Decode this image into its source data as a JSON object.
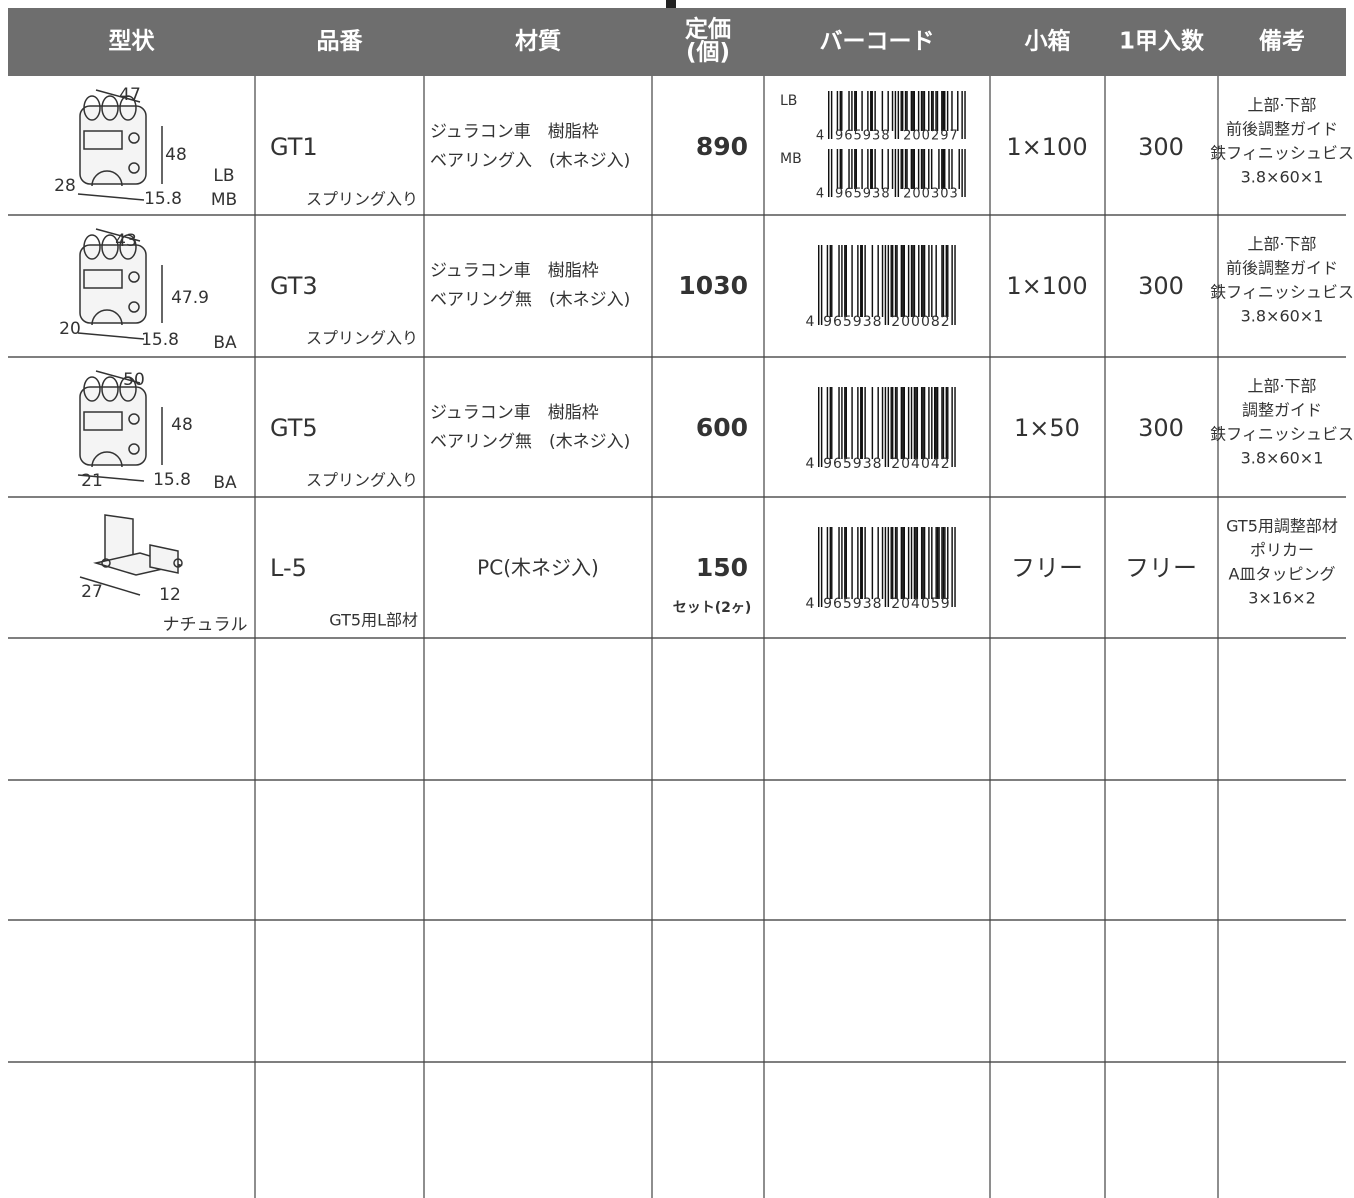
{
  "header": {
    "columns": [
      [
        "型状"
      ],
      [
        "品番"
      ],
      [
        "材質"
      ],
      [
        "定価",
        "(個)"
      ],
      [
        "バーコード"
      ],
      [
        "小箱"
      ],
      [
        "1甲入数"
      ],
      [
        "備考"
      ]
    ]
  },
  "rows": [
    {
      "shape": {
        "dims": [
          "47",
          "48",
          "28",
          "15.8",
          "LB",
          "MB"
        ]
      },
      "code": "GT1",
      "code_note": "スプリング入り",
      "material": [
        "ジュラコン車　樹脂枠",
        "ベアリング入　(木ネジ入)"
      ],
      "price": 890,
      "price_color": "#e60012",
      "barcode": [
        {
          "label": "LB",
          "lead": "4",
          "left": "965938",
          "right": "200297"
        },
        {
          "label": "MB",
          "lead": "4",
          "left": "965938",
          "right": "200303"
        }
      ],
      "box": "1×100",
      "qty": 300,
      "notes": [
        "上部·下部",
        "前後調整ガイド",
        "鉄フィニッシュビス",
        "3.8×60×1"
      ]
    },
    {
      "shape": {
        "dims": [
          "43",
          "47.9",
          "20",
          "15.8",
          "BA"
        ]
      },
      "code": "GT3",
      "code_note": "スプリング入り",
      "material": [
        "ジュラコン車　樹脂枠",
        "ベアリング無　(木ネジ入)"
      ],
      "price": 1030,
      "price_color": "#e60012",
      "barcode": [
        {
          "lead": "4",
          "left": "965938",
          "right": "200082"
        }
      ],
      "box": "1×100",
      "qty": 300,
      "notes": [
        "上部·下部",
        "前後調整ガイド",
        "鉄フィニッシュビス",
        "3.8×60×1"
      ]
    },
    {
      "shape": {
        "dims": [
          "50",
          "48",
          "21",
          "15.8",
          "BA"
        ]
      },
      "code": "GT5",
      "code_note": "スプリング入り",
      "material": [
        "ジュラコン車　樹脂枠",
        "ベアリング無　(木ネジ入)"
      ],
      "price": 600,
      "price_color": "#222222",
      "barcode": [
        {
          "lead": "4",
          "left": "965938",
          "right": "204042"
        }
      ],
      "box": "1×50",
      "qty": 300,
      "notes": [
        "上部·下部",
        "調整ガイド",
        "鉄フィニッシュビス",
        "3.8×60×1"
      ]
    },
    {
      "shape": {
        "dims": [
          "27",
          "12",
          "ナチュラル"
        ]
      },
      "code": "L-5",
      "code_note": "GT5用L部材",
      "material": [
        "PC(木ネジ入)"
      ],
      "price": 150,
      "price_note": "セット(2ヶ)",
      "price_color": "#222222",
      "barcode": [
        {
          "lead": "4",
          "left": "965938",
          "right": "204059"
        }
      ],
      "box": "フリー",
      "qty": "フリー",
      "notes": [
        "GT5用調整部材",
        "ポリカー",
        "A皿タッピング",
        "3×16×2"
      ]
    }
  ]
}
